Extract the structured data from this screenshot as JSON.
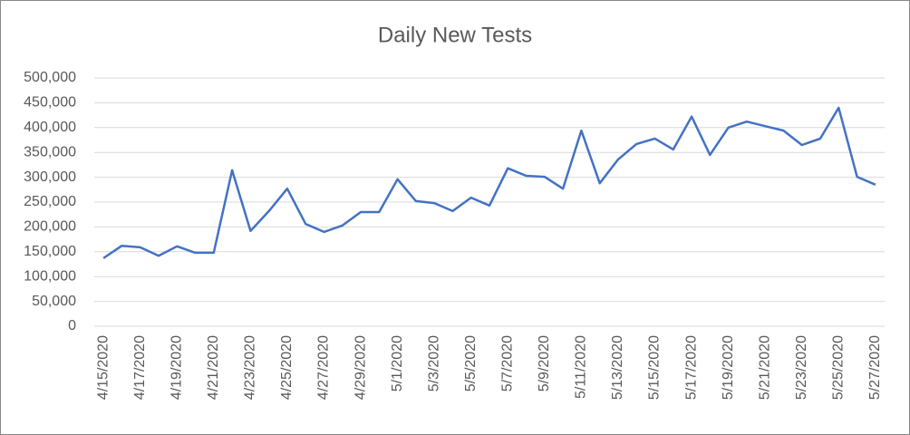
{
  "chart_data": {
    "type": "line",
    "title": "Daily New Tests",
    "categories": [
      "4/15/2020",
      null,
      "4/17/2020",
      null,
      "4/19/2020",
      null,
      "4/21/2020",
      null,
      "4/23/2020",
      null,
      "4/25/2020",
      null,
      "4/27/2020",
      null,
      "4/29/2020",
      null,
      "5/1/2020",
      null,
      "5/3/2020",
      null,
      "5/5/2020",
      null,
      "5/7/2020",
      null,
      "5/9/2020",
      null,
      "5/11/2020",
      null,
      "5/13/2020",
      null,
      "5/15/2020",
      null,
      "5/17/2020",
      null,
      "5/19/2020",
      null,
      "5/21/2020",
      null,
      "5/23/2020",
      null,
      "5/25/2020",
      null,
      "5/27/2020"
    ],
    "series": [
      {
        "name": "Daily New Tests",
        "color": "#4472c4",
        "values": [
          137000,
          162000,
          159000,
          142000,
          161000,
          148000,
          148000,
          314000,
          192000,
          232000,
          277000,
          206000,
          190000,
          203000,
          230000,
          230000,
          296000,
          252000,
          248000,
          232000,
          259000,
          243000,
          318000,
          303000,
          301000,
          277000,
          394000,
          288000,
          336000,
          367000,
          378000,
          356000,
          422000,
          345000,
          400000,
          412000,
          403000,
          394000,
          365000,
          378000,
          440000,
          301000,
          285000
        ]
      }
    ],
    "ylim": [
      0,
      500000
    ],
    "yticks": [
      0,
      {
        "value": 50000,
        "label": "50,000"
      },
      {
        "value": 100000,
        "label": "100,000"
      },
      {
        "value": 150000,
        "label": "150,000"
      },
      {
        "value": 200000,
        "label": "200,000"
      },
      {
        "value": 250000,
        "label": "250,000"
      },
      {
        "value": 300000,
        "label": "300,000"
      },
      {
        "value": 350000,
        "label": "350,000"
      },
      {
        "value": 400000,
        "label": "400,000"
      },
      {
        "value": 450000,
        "label": "450,000"
      },
      {
        "value": 500000,
        "label": "500,000"
      }
    ],
    "grid": true
  }
}
